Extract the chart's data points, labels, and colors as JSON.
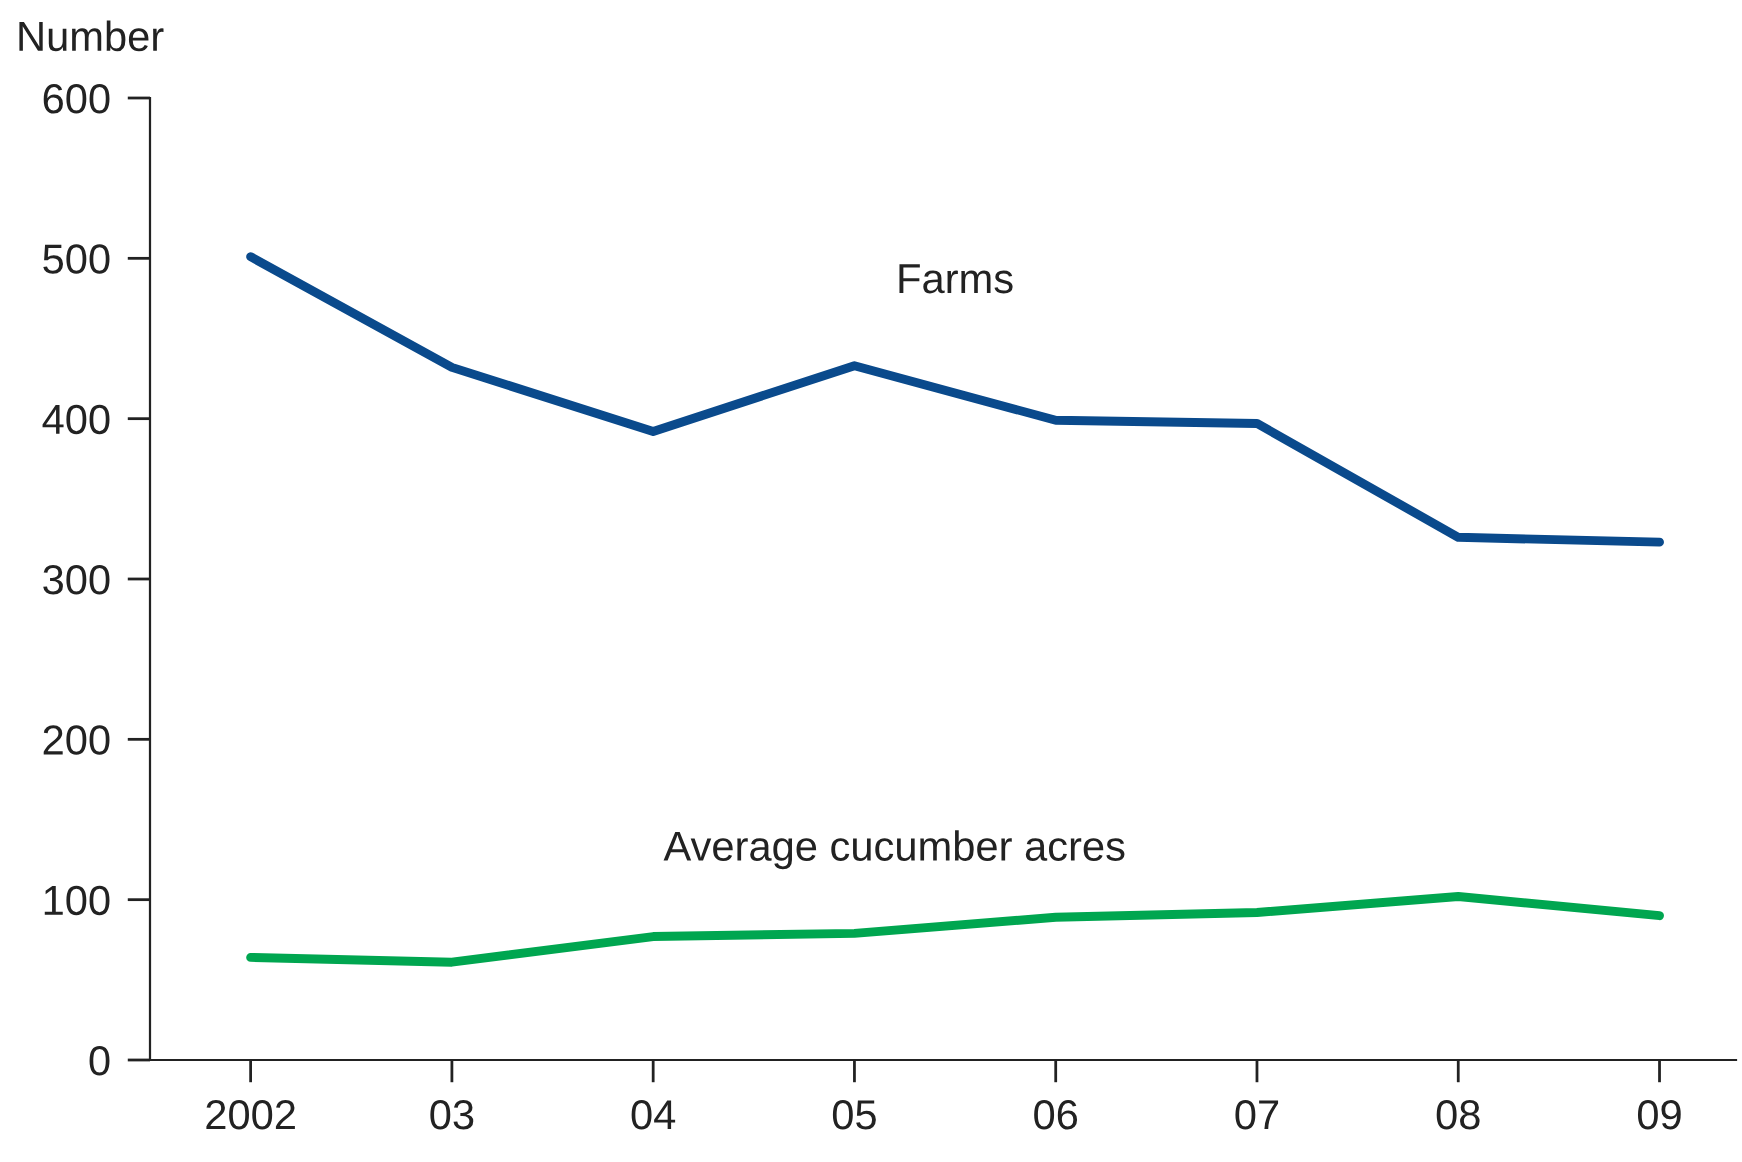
{
  "chart_data": {
    "type": "line",
    "ylabel": "Number",
    "categories": [
      "2002",
      "03",
      "04",
      "05",
      "06",
      "07",
      "08",
      "09"
    ],
    "series": [
      {
        "name": "Farms",
        "color": "#0a4a8c",
        "values": [
          501,
          432,
          392,
          433,
          399,
          397,
          326,
          323
        ]
      },
      {
        "name": "Average cucumber acres",
        "color": "#00a650",
        "values": [
          64,
          61,
          77,
          79,
          89,
          92,
          102,
          90
        ]
      }
    ],
    "ylim": [
      0,
      600
    ],
    "yticks": [
      0,
      100,
      200,
      300,
      400,
      500,
      600
    ],
    "grid": false,
    "legend": false,
    "marker": "none",
    "line_style": "solid"
  }
}
